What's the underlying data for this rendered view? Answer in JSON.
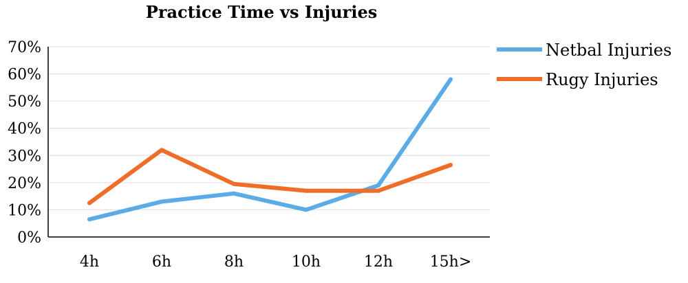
{
  "chart_data": {
    "type": "line",
    "title": "Practice Time vs Injuries",
    "categories": [
      "4h",
      "6h",
      "8h",
      "10h",
      "12h",
      "15h>"
    ],
    "series": [
      {
        "name": "Netbal Injuries",
        "values": [
          6.5,
          13,
          16,
          10,
          19,
          58
        ],
        "color": "#5BACE6"
      },
      {
        "name": "Rugy Injuries",
        "values": [
          12.5,
          32,
          19.5,
          17,
          17,
          26.5
        ],
        "color": "#EE6D28"
      }
    ],
    "y_ticks": [
      "0%",
      "10%",
      "20%",
      "30%",
      "40%",
      "50%",
      "60%",
      "70%"
    ],
    "ylim": [
      0,
      70
    ],
    "grid": true,
    "legend_position": "top-right"
  }
}
